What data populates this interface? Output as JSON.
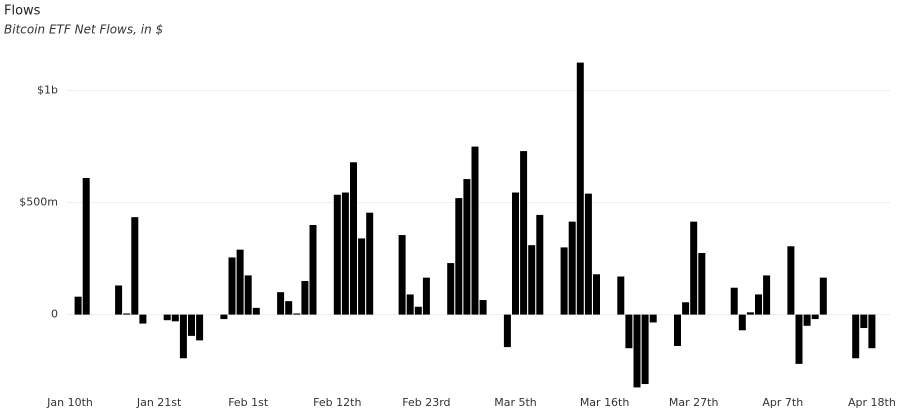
{
  "chart_data": {
    "type": "bar",
    "title": "Flows",
    "subtitle": "Bitcoin ETF Net Flows, in $",
    "categories": [
      "Jan 10th",
      null,
      null,
      null,
      null,
      null,
      null,
      null,
      null,
      null,
      null,
      "Jan 21st",
      null,
      null,
      null,
      null,
      null,
      null,
      null,
      null,
      null,
      null,
      "Feb 1st",
      null,
      null,
      null,
      null,
      null,
      null,
      null,
      null,
      null,
      null,
      "Feb 12th",
      null,
      null,
      null,
      null,
      null,
      null,
      null,
      null,
      null,
      null,
      "Feb 23rd",
      null,
      null,
      null,
      null,
      null,
      null,
      null,
      null,
      null,
      null,
      "Mar 5th",
      null,
      null,
      null,
      null,
      null,
      null,
      null,
      null,
      null,
      null,
      "Mar 16th",
      null,
      null,
      null,
      null,
      null,
      null,
      null,
      null,
      null,
      null,
      "Mar 27th",
      null,
      null,
      null,
      null,
      null,
      null,
      null,
      null,
      null,
      null,
      "Apr 7th",
      null,
      null,
      null,
      null,
      null,
      null,
      null,
      null,
      null,
      null,
      "Apr 18th"
    ],
    "values": [
      null,
      80000000,
      610000000,
      null,
      null,
      null,
      130000000,
      5000000,
      435000000,
      -40000000,
      null,
      null,
      -25000000,
      -30000000,
      -195000000,
      -95000000,
      -115000000,
      null,
      null,
      -20000000,
      255000000,
      290000000,
      175000000,
      30000000,
      null,
      null,
      100000000,
      60000000,
      5000000,
      150000000,
      400000000,
      null,
      null,
      535000000,
      545000000,
      680000000,
      340000000,
      455000000,
      null,
      null,
      null,
      355000000,
      90000000,
      35000000,
      165000000,
      null,
      null,
      230000000,
      520000000,
      605000000,
      750000000,
      65000000,
      null,
      null,
      -145000000,
      545000000,
      730000000,
      310000000,
      445000000,
      null,
      null,
      300000000,
      415000000,
      1125000000,
      540000000,
      180000000,
      null,
      null,
      170000000,
      -150000000,
      -325000000,
      -310000000,
      -35000000,
      null,
      null,
      -140000000,
      55000000,
      415000000,
      275000000,
      null,
      null,
      null,
      120000000,
      -70000000,
      10000000,
      90000000,
      175000000,
      null,
      null,
      305000000,
      -220000000,
      -50000000,
      -20000000,
      165000000,
      null,
      null,
      null,
      -195000000,
      -60000000,
      -150000000
    ],
    "color": "#000000",
    "ylim": [
      -350000000,
      1150000000
    ],
    "yticks": [
      0,
      {
        "value": 500000000,
        "label": "$500m"
      },
      {
        "value": 1000000000,
        "label": "$1b"
      }
    ],
    "grid": true
  }
}
